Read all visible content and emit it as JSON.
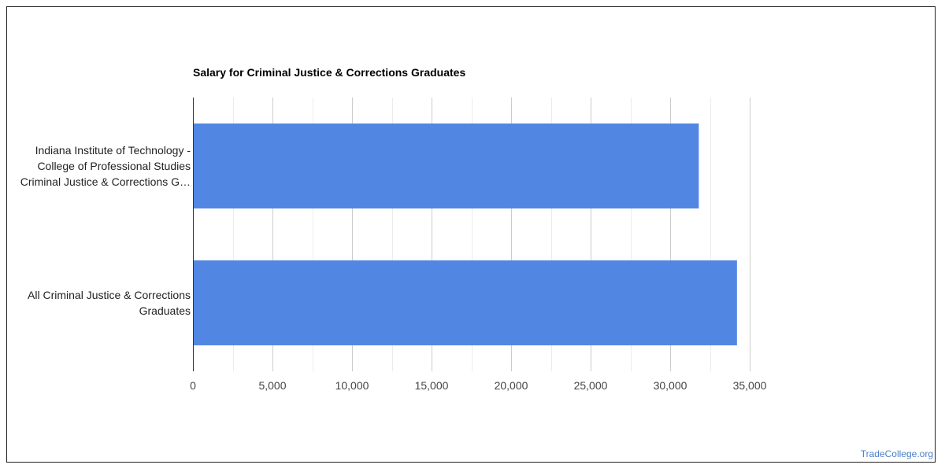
{
  "chart_data": {
    "type": "bar",
    "orientation": "horizontal",
    "title": "Salary for Criminal Justice & Corrections Graduates",
    "xlabel": "",
    "ylabel": "",
    "categories": [
      [
        "Indiana Institute of Technology -",
        "College of Professional Studies",
        "Criminal Justice & Corrections G…"
      ],
      [
        "All Criminal Justice & Corrections",
        "Graduates"
      ]
    ],
    "values": [
      31800,
      34200
    ],
    "xlim": [
      0,
      35000
    ],
    "ticks": [
      0,
      5000,
      10000,
      15000,
      20000,
      25000,
      30000,
      35000
    ],
    "tick_labels": [
      "0",
      "5,000",
      "10,000",
      "15,000",
      "20,000",
      "25,000",
      "30,000",
      "35,000"
    ],
    "grid": true,
    "legend": "none",
    "bar_color": "#5286e3"
  },
  "watermark": "TradeCollege.org"
}
